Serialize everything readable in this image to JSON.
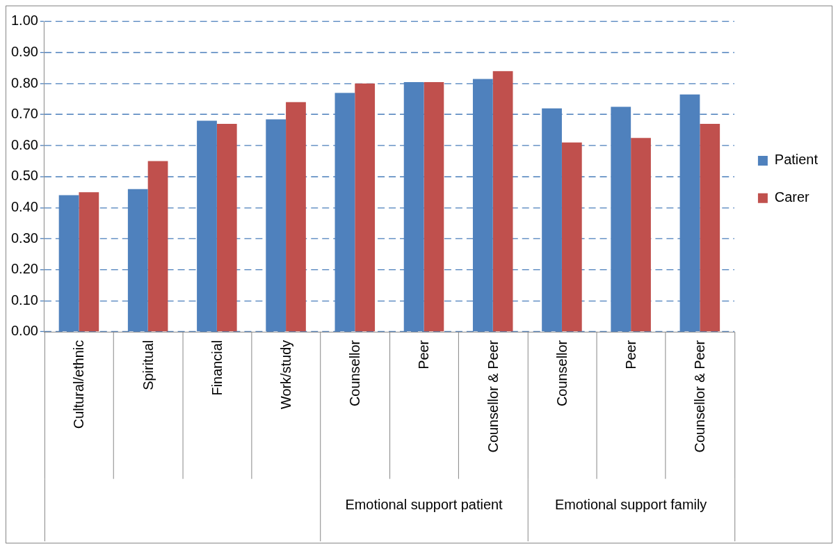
{
  "chart_data": {
    "type": "bar",
    "categories": [
      "Cultural/ethnic",
      "Spiritual",
      "Financial",
      "Work/study",
      "Counsellor",
      "Peer",
      "Counsellor & Peer",
      "Counsellor",
      "Peer",
      "Counsellor & Peer"
    ],
    "series": [
      {
        "name": "Patient",
        "color": "#4f81bd",
        "values": [
          0.44,
          0.46,
          0.68,
          0.685,
          0.77,
          0.805,
          0.815,
          0.72,
          0.725,
          0.765
        ]
      },
      {
        "name": "Carer",
        "color": "#c0504d",
        "values": [
          0.45,
          0.55,
          0.67,
          0.74,
          0.8,
          0.805,
          0.84,
          0.61,
          0.625,
          0.67
        ]
      }
    ],
    "ylim": [
      0,
      1
    ],
    "yticks": [
      {
        "value": 0,
        "label": "0.00"
      },
      {
        "value": 0.1,
        "label": "0.10"
      },
      {
        "value": 0.2,
        "label": "0.20"
      },
      {
        "value": 0.3,
        "label": "0.30"
      },
      {
        "value": 0.4,
        "label": "0.40"
      },
      {
        "value": 0.5,
        "label": "0.50"
      },
      {
        "value": 0.6,
        "label": "0.60"
      },
      {
        "value": 0.7,
        "label": "0.70"
      },
      {
        "value": 0.8,
        "label": "0.80"
      },
      {
        "value": 0.9,
        "label": "0.90"
      },
      {
        "value": 1,
        "label": "1.00"
      }
    ],
    "grid": "y",
    "legend": "right",
    "annotations": [
      "Emotional support patient",
      "Emotional support family"
    ]
  }
}
